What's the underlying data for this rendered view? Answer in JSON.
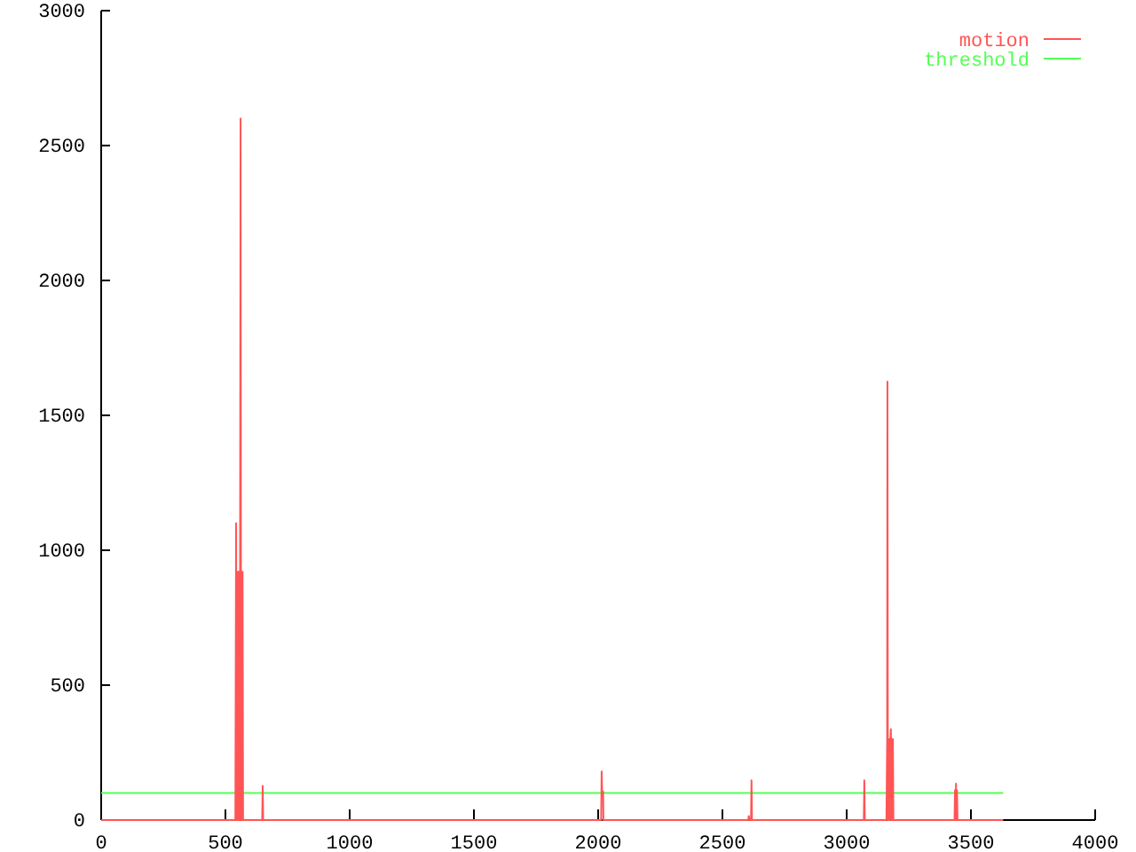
{
  "chart_data": {
    "type": "line",
    "series": [
      {
        "name": "motion",
        "color": "#ff5555",
        "x": [
          0,
          540,
          543,
          545,
          547,
          549,
          551,
          553,
          555,
          557,
          559,
          561,
          563,
          565,
          567,
          569,
          571,
          648,
          650,
          652,
          2012,
          2014,
          2016,
          2020,
          2021,
          2604,
          2606,
          2610,
          2615,
          2617,
          2619,
          3069,
          3071,
          3073,
          3160,
          3163,
          3164,
          3166,
          3168,
          3170,
          3172,
          3174,
          3176,
          3178,
          3180,
          3182,
          3184,
          3186,
          3188,
          3434,
          3436,
          3438,
          3440,
          3442,
          3444,
          3446,
          3630
        ],
        "values": [
          0,
          0,
          1100,
          0,
          920,
          0,
          920,
          0,
          920,
          0,
          920,
          2600,
          0,
          920,
          0,
          920,
          0,
          0,
          127,
          0,
          0,
          180,
          105,
          105,
          0,
          0,
          15,
          0,
          0,
          147,
          0,
          0,
          147,
          0,
          0,
          300,
          1625,
          0,
          300,
          0,
          300,
          0,
          300,
          337,
          0,
          300,
          0,
          300,
          0,
          0,
          110,
          0,
          135,
          0,
          110,
          0,
          0
        ]
      },
      {
        "name": "threshold",
        "color": "#55ff55",
        "x": [
          0,
          3630
        ],
        "values": [
          100,
          100
        ]
      }
    ],
    "xlim": [
      0,
      4000
    ],
    "ylim": [
      0,
      3000
    ],
    "xticks": [
      0,
      500,
      1000,
      1500,
      2000,
      2500,
      3000,
      3500,
      4000
    ],
    "yticks": [
      0,
      500,
      1000,
      1500,
      2000,
      2500,
      3000
    ],
    "legend": "top right",
    "line_style": "solid"
  }
}
